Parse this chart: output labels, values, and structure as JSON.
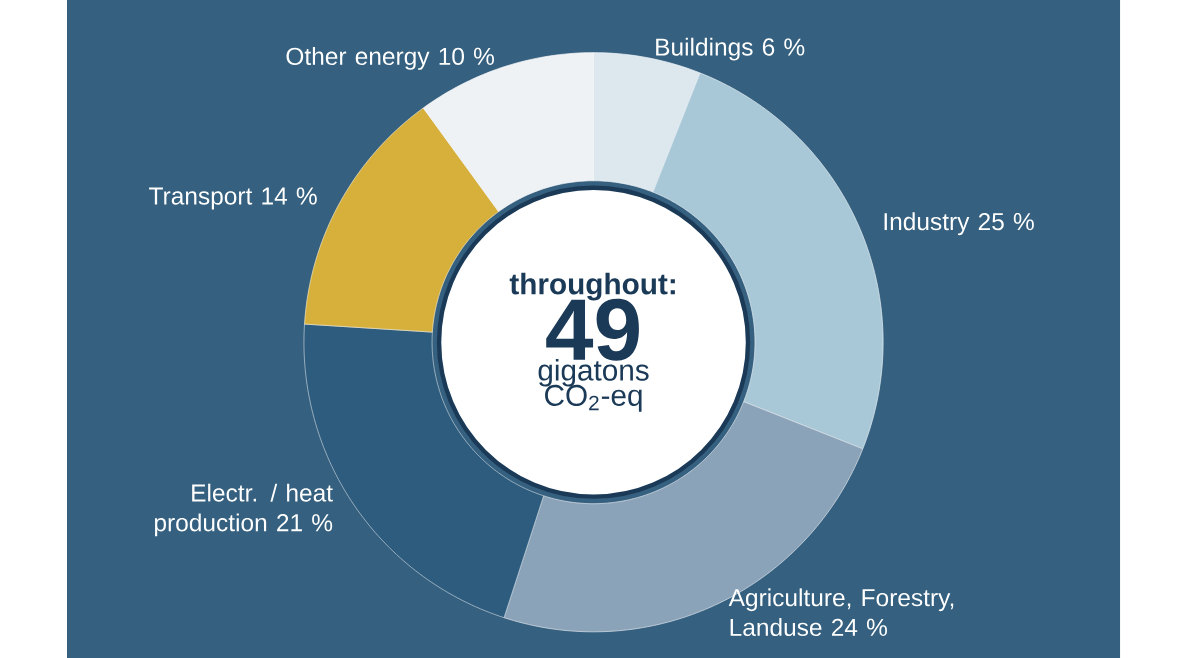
{
  "chart_data": {
    "type": "donut",
    "categories": [
      "Buildings",
      "Industry",
      "Agriculture, Forestry, Landuse",
      "Electr. / heat production",
      "Transport",
      "Other energy"
    ],
    "values": [
      6,
      25,
      24,
      21,
      14,
      10
    ],
    "value_labels": [
      "6 %",
      "25 %",
      "24 %",
      "21 %",
      "14 %",
      "10 %"
    ],
    "colors": [
      "#dce7ee",
      "#a8c8d7",
      "#8ba3b8",
      "#2e5c7e",
      "#d6b03a",
      "#eef2f5"
    ],
    "annotations": [
      "throughout:",
      "49",
      "gigatons",
      "CO$_{2}$-eq"
    ]
  }
}
